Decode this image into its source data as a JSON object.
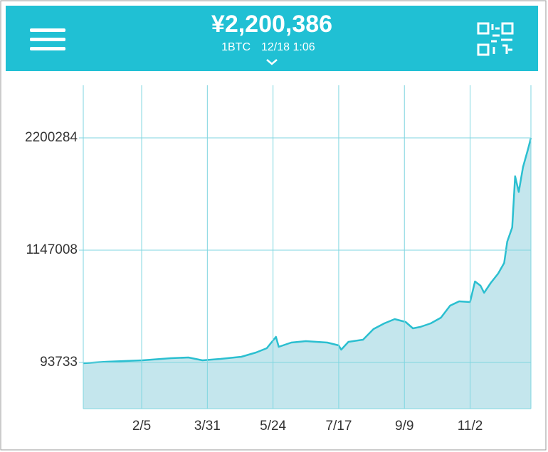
{
  "header": {
    "price": "¥2,200,386",
    "unit": "1BTC",
    "timestamp": "12/18 1:06"
  },
  "chart_data": {
    "type": "area",
    "color": "#2bbfd0",
    "fill": "#c4e6ed",
    "grid": true,
    "x": [
      -12,
      7,
      36.6,
      60,
      74.5,
      86,
      100.8,
      118,
      130,
      138.8,
      146.4,
      148.7,
      159,
      171,
      188.6,
      198,
      200,
      206,
      218,
      226.6,
      235.5,
      244,
      253,
      259,
      265,
      273.6,
      282,
      289.6,
      297,
      306,
      310,
      314.6,
      317.5,
      323,
      329,
      334,
      336.5,
      340.6,
      343,
      346,
      349.5,
      353.6,
      356
    ],
    "values": [
      87000,
      100400,
      113700,
      133700,
      140400,
      113700,
      127000,
      147000,
      187000,
      227000,
      333700,
      240400,
      280400,
      293700,
      280400,
      253700,
      213700,
      287000,
      307000,
      407000,
      460400,
      500400,
      473700,
      413700,
      427000,
      460400,
      513700,
      627000,
      667000,
      660400,
      853700,
      813700,
      747000,
      840400,
      927000,
      1027000,
      1227000,
      1360400,
      1840400,
      1693700,
      1927000,
      2093700,
      2200284
    ],
    "xlim": [
      -12,
      356
    ],
    "xticks": [
      {
        "value": 36,
        "label": "2/5"
      },
      {
        "value": 90,
        "label": "3/31"
      },
      {
        "value": 144,
        "label": "5/24"
      },
      {
        "value": 198,
        "label": "7/17"
      },
      {
        "value": 252,
        "label": "9/9"
      },
      {
        "value": 306,
        "label": "11/2"
      }
    ],
    "ylim": [
      -339600,
      2693600
    ],
    "yticks": [
      93733,
      1147008,
      2200284
    ]
  }
}
